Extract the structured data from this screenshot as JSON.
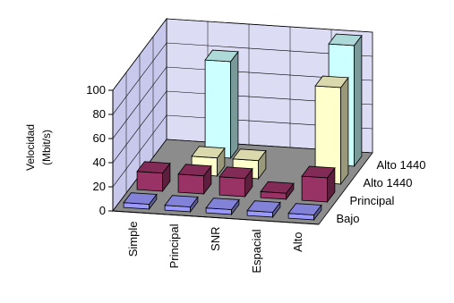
{
  "chart_data": {
    "type": "bar",
    "style": "3d-grouped-bar",
    "ylabel_line1": "Velocidad",
    "ylabel_line2": "(Mbit/s)",
    "ylim": [
      0,
      100
    ],
    "yticks": [
      "0",
      "20",
      "40",
      "60",
      "80",
      "100"
    ],
    "categories": [
      "Simple",
      "Principal",
      "SNR",
      "Espacial",
      "Alto"
    ],
    "grid": true,
    "series": [
      {
        "name": "Bajo",
        "values": [
          4,
          4,
          4,
          4,
          4
        ],
        "color": "#9999FF"
      },
      {
        "name": "Principal",
        "values": [
          15,
          15,
          15,
          5,
          20
        ],
        "color": "#993366"
      },
      {
        "name": "Alto 1440",
        "values": [
          0,
          15,
          15,
          0,
          80
        ],
        "color": "#FFFFCC"
      },
      {
        "name": "Alto 1440",
        "values": [
          0,
          80,
          0,
          0,
          100
        ],
        "color": "#CCFFFF"
      }
    ]
  }
}
